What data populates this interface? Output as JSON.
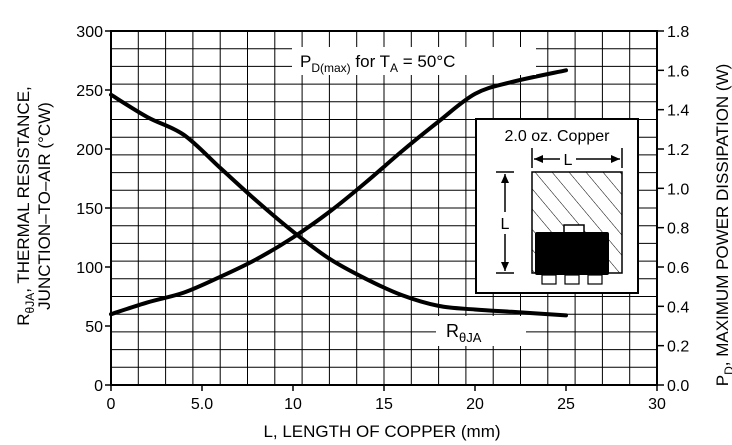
{
  "chart_data": {
    "type": "line",
    "xlabel": "L, LENGTH OF COPPER (mm)",
    "ylabel_left": {
      "main": "R",
      "sub": "θJA",
      "rest": ", THERMAL RESISTANCE,",
      "line2": "JUNCTION–TO–AIR (°CW)"
    },
    "ylabel_right": {
      "main": "P",
      "sub": "D",
      "rest": ", MAXIMUM POWER DISSIPATION (W)"
    },
    "xlim": [
      0,
      30
    ],
    "ylim_left": [
      0,
      300
    ],
    "ylim_right": [
      0,
      1.8
    ],
    "xticks": [
      0,
      5,
      10,
      15,
      20,
      25,
      30
    ],
    "xtick_labels": [
      "0",
      "5.0",
      "10",
      "15",
      "20",
      "25",
      "30"
    ],
    "yticks_left": [
      0,
      50,
      100,
      150,
      200,
      250,
      300
    ],
    "yticks_left_labels": [
      "0",
      "50",
      "100",
      "150",
      "200",
      "250",
      "300"
    ],
    "yticks_right": [
      0,
      0.2,
      0.4,
      0.6,
      0.8,
      1.0,
      1.2,
      1.4,
      1.6,
      1.8
    ],
    "yticks_right_labels": [
      "0.0",
      "0.2",
      "0.4",
      "0.6",
      "0.8",
      "1.0",
      "1.2",
      "1.4",
      "1.6",
      "1.8"
    ],
    "grid": true,
    "series": [
      {
        "axis": "left",
        "label_main": "R",
        "label_sub": "θJA",
        "points": [
          [
            0,
            246
          ],
          [
            2,
            227
          ],
          [
            4,
            212
          ],
          [
            6,
            184
          ],
          [
            8,
            156
          ],
          [
            10,
            130
          ],
          [
            12,
            107
          ],
          [
            14,
            90
          ],
          [
            16,
            76
          ],
          [
            18,
            67
          ],
          [
            20,
            64
          ],
          [
            22,
            62
          ],
          [
            25,
            59
          ]
        ]
      },
      {
        "axis": "right",
        "label_main": "P",
        "label_sub": "D(max)",
        "label_rest": " for T",
        "label_sub2": "A",
        "label_rest2": " = 50°C",
        "points": [
          [
            0,
            0.36
          ],
          [
            2,
            0.42
          ],
          [
            4,
            0.47
          ],
          [
            6,
            0.55
          ],
          [
            8,
            0.64
          ],
          [
            10,
            0.75
          ],
          [
            12,
            0.88
          ],
          [
            14,
            1.03
          ],
          [
            16,
            1.19
          ],
          [
            18,
            1.34
          ],
          [
            20,
            1.48
          ],
          [
            22,
            1.54
          ],
          [
            25,
            1.6
          ]
        ]
      }
    ],
    "inset": {
      "title": "2.0 oz. Copper",
      "dim_horizontal": "L",
      "dim_vertical": "L"
    }
  }
}
